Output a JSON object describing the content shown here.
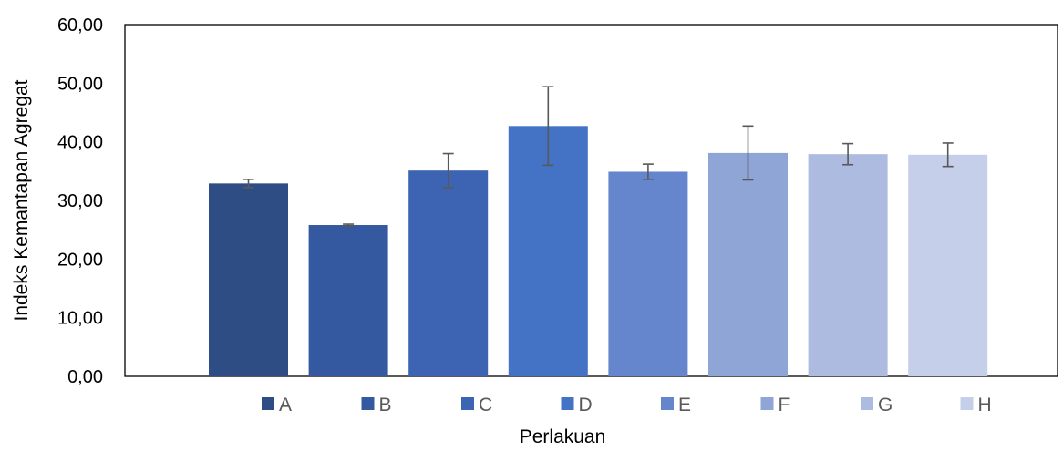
{
  "chart_data": {
    "type": "bar",
    "title": "",
    "xlabel": "Perlakuan",
    "ylabel": "Indeks Kemantapan Agregat",
    "ylim": [
      0,
      60
    ],
    "yticks": [
      "0,00",
      "10,00",
      "20,00",
      "30,00",
      "40,00",
      "50,00",
      "60,00"
    ],
    "grid": false,
    "legend_position": "bottom",
    "series": [
      {
        "name": "A",
        "value": 32.9,
        "error": 0.7,
        "color": "#2e4d85"
      },
      {
        "name": "B",
        "value": 25.8,
        "error": 0.15,
        "color": "#3459a0"
      },
      {
        "name": "C",
        "value": 35.1,
        "error": 2.9,
        "color": "#3d64b3"
      },
      {
        "name": "D",
        "value": 42.7,
        "error": 6.7,
        "color": "#4472c4"
      },
      {
        "name": "E",
        "value": 34.9,
        "error": 1.3,
        "color": "#6585cc"
      },
      {
        "name": "F",
        "value": 38.1,
        "error": 4.6,
        "color": "#8fa5d6"
      },
      {
        "name": "G",
        "value": 37.9,
        "error": 1.8,
        "color": "#adbbe0"
      },
      {
        "name": "H",
        "value": 37.8,
        "error": 2.0,
        "color": "#c6cfe9"
      }
    ]
  }
}
